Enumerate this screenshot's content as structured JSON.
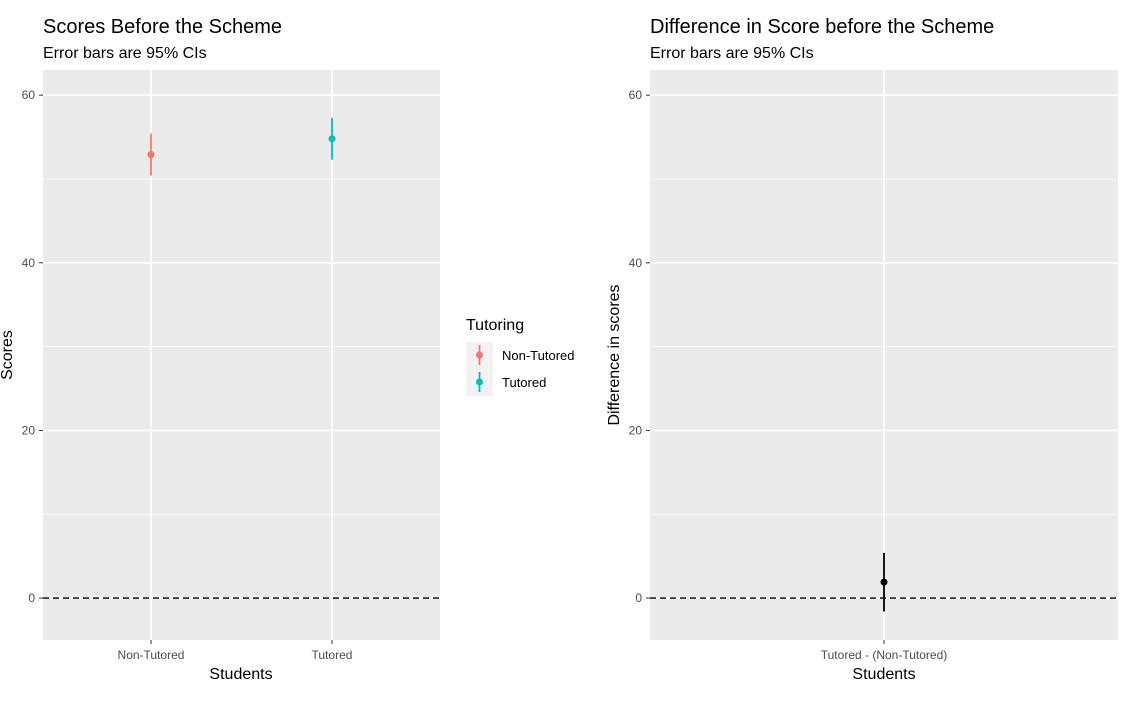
{
  "chart_data": [
    {
      "type": "scatter",
      "title": "Scores Before the Scheme",
      "subtitle": "Error bars are 95% CIs",
      "xlabel": "Students",
      "ylabel": "Scores",
      "categories": [
        "Non-Tutored",
        "Tutored"
      ],
      "series": [
        {
          "name": "Non-Tutored",
          "x": "Non-Tutored",
          "value": 52.9,
          "ci": [
            50.4,
            55.4
          ],
          "color": "#F8766D"
        },
        {
          "name": "Tutored",
          "x": "Tutored",
          "value": 54.8,
          "ci": [
            52.3,
            57.3
          ],
          "color": "#00BFC4"
        }
      ],
      "ylim": [
        -5,
        63
      ],
      "yticks": [
        0,
        20,
        40,
        60
      ],
      "reference_line": {
        "y": 0,
        "style": "dashed"
      },
      "grid": true,
      "legend": {
        "title": "Tutoring",
        "placement": "right",
        "entries": [
          "Non-Tutored",
          "Tutored"
        ]
      }
    },
    {
      "type": "scatter",
      "title": "Difference in Score before the Scheme",
      "subtitle": "Error bars are 95% CIs",
      "xlabel": "Students",
      "ylabel": "Difference in scores",
      "categories": [
        "Tutored - (Non-Tutored)"
      ],
      "series": [
        {
          "x": "Tutored - (Non-Tutored)",
          "value": 1.9,
          "ci": [
            -1.6,
            5.4
          ],
          "color": "#000000"
        }
      ],
      "ylim": [
        -5,
        63
      ],
      "yticks": [
        0,
        20,
        40,
        60
      ],
      "reference_line": {
        "y": 0,
        "style": "dashed"
      },
      "grid": true
    }
  ]
}
